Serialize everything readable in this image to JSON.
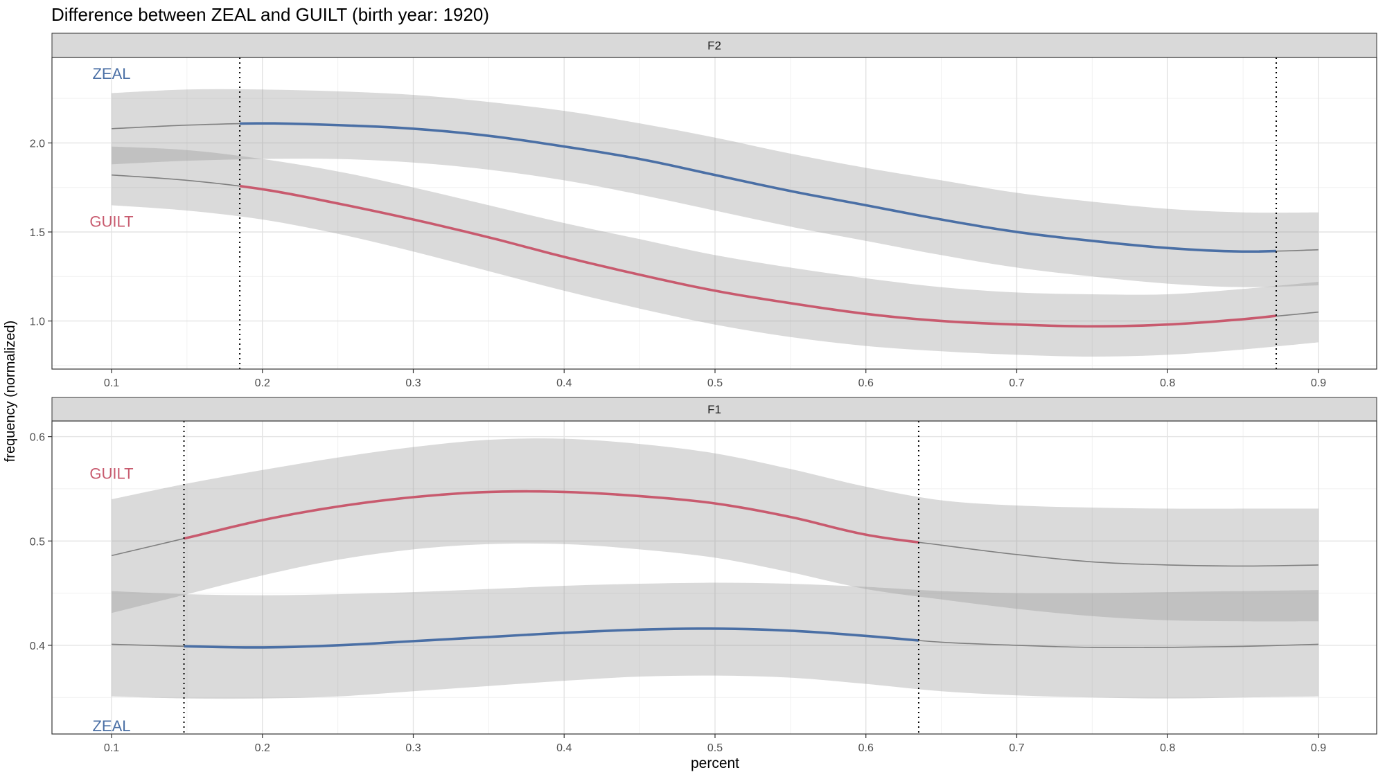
{
  "title": "Difference between ZEAL and GUILT (birth year: 1920)",
  "xlabel": "percent",
  "ylabel": "frequency (normalized)",
  "colors": {
    "ZEAL": "#4a6fa5",
    "GUILT": "#c85a6e",
    "band": "#d9d9d9",
    "line": "#7f7f7f"
  },
  "chart_data": [
    {
      "type": "line",
      "panel": "F2",
      "xlim": [
        0.1,
        0.9
      ],
      "ylim": [
        0.73,
        2.48
      ],
      "xticks": [
        "0.1",
        "0.2",
        "0.3",
        "0.4",
        "0.5",
        "0.6",
        "0.7",
        "0.8",
        "0.9"
      ],
      "yticks": [
        "1.0",
        "1.5",
        "2.0"
      ],
      "vlines": [
        0.185,
        0.872
      ],
      "labels": [
        {
          "text": "ZEAL",
          "series": "ZEAL",
          "x": 0.1,
          "y": 2.39
        },
        {
          "text": "GUILT",
          "series": "GUILT",
          "x": 0.1,
          "y": 1.56
        }
      ],
      "x": [
        0.1,
        0.15,
        0.2,
        0.25,
        0.3,
        0.35,
        0.4,
        0.45,
        0.5,
        0.55,
        0.6,
        0.65,
        0.7,
        0.75,
        0.8,
        0.85,
        0.9
      ],
      "series": [
        {
          "name": "ZEAL",
          "values": [
            2.08,
            2.1,
            2.11,
            2.1,
            2.08,
            2.04,
            1.98,
            1.91,
            1.82,
            1.73,
            1.65,
            1.57,
            1.5,
            1.45,
            1.41,
            1.39,
            1.4
          ],
          "upper": [
            2.28,
            2.3,
            2.3,
            2.29,
            2.27,
            2.23,
            2.18,
            2.11,
            2.03,
            1.94,
            1.86,
            1.79,
            1.72,
            1.67,
            1.63,
            1.61,
            1.61
          ],
          "lower": [
            1.88,
            1.9,
            1.91,
            1.91,
            1.89,
            1.85,
            1.79,
            1.71,
            1.62,
            1.53,
            1.45,
            1.37,
            1.3,
            1.25,
            1.21,
            1.19,
            1.2
          ]
        },
        {
          "name": "GUILT",
          "values": [
            1.82,
            1.79,
            1.74,
            1.66,
            1.57,
            1.47,
            1.36,
            1.26,
            1.17,
            1.1,
            1.04,
            1.0,
            0.98,
            0.97,
            0.98,
            1.01,
            1.05
          ],
          "upper": [
            1.98,
            1.96,
            1.91,
            1.84,
            1.75,
            1.65,
            1.55,
            1.46,
            1.37,
            1.3,
            1.24,
            1.19,
            1.16,
            1.15,
            1.15,
            1.18,
            1.22
          ],
          "lower": [
            1.65,
            1.62,
            1.57,
            1.49,
            1.39,
            1.28,
            1.17,
            1.07,
            0.98,
            0.91,
            0.86,
            0.83,
            0.81,
            0.8,
            0.81,
            0.84,
            0.88
          ]
        }
      ]
    },
    {
      "type": "line",
      "panel": "F1",
      "xlim": [
        0.1,
        0.9
      ],
      "ylim": [
        0.315,
        0.615
      ],
      "xticks": [
        "0.1",
        "0.2",
        "0.3",
        "0.4",
        "0.5",
        "0.6",
        "0.7",
        "0.8",
        "0.9"
      ],
      "yticks": [
        "0.4",
        "0.5",
        "0.6"
      ],
      "vlines": [
        0.148,
        0.635
      ],
      "labels": [
        {
          "text": "GUILT",
          "series": "GUILT",
          "x": 0.1,
          "y": 0.565
        },
        {
          "text": "ZEAL",
          "series": "ZEAL",
          "x": 0.1,
          "y": 0.323
        }
      ],
      "x": [
        0.1,
        0.15,
        0.2,
        0.25,
        0.3,
        0.35,
        0.4,
        0.45,
        0.5,
        0.55,
        0.6,
        0.65,
        0.7,
        0.75,
        0.8,
        0.85,
        0.9
      ],
      "series": [
        {
          "name": "GUILT",
          "values": [
            0.486,
            0.503,
            0.52,
            0.533,
            0.542,
            0.547,
            0.547,
            0.543,
            0.536,
            0.523,
            0.506,
            0.496,
            0.487,
            0.48,
            0.477,
            0.476,
            0.477
          ],
          "upper": [
            0.54,
            0.555,
            0.568,
            0.58,
            0.59,
            0.597,
            0.598,
            0.593,
            0.584,
            0.569,
            0.552,
            0.539,
            0.534,
            0.532,
            0.531,
            0.531,
            0.531
          ],
          "lower": [
            0.431,
            0.449,
            0.467,
            0.482,
            0.492,
            0.497,
            0.497,
            0.492,
            0.484,
            0.47,
            0.454,
            0.444,
            0.435,
            0.428,
            0.424,
            0.423,
            0.423
          ]
        },
        {
          "name": "ZEAL",
          "values": [
            0.401,
            0.399,
            0.398,
            0.4,
            0.404,
            0.408,
            0.412,
            0.415,
            0.416,
            0.414,
            0.409,
            0.403,
            0.4,
            0.398,
            0.398,
            0.399,
            0.401
          ],
          "upper": [
            0.452,
            0.449,
            0.448,
            0.449,
            0.451,
            0.454,
            0.457,
            0.459,
            0.46,
            0.459,
            0.456,
            0.452,
            0.45,
            0.45,
            0.451,
            0.452,
            0.453
          ],
          "lower": [
            0.351,
            0.349,
            0.349,
            0.351,
            0.356,
            0.361,
            0.366,
            0.37,
            0.371,
            0.369,
            0.363,
            0.356,
            0.352,
            0.35,
            0.349,
            0.35,
            0.351
          ]
        }
      ]
    }
  ]
}
